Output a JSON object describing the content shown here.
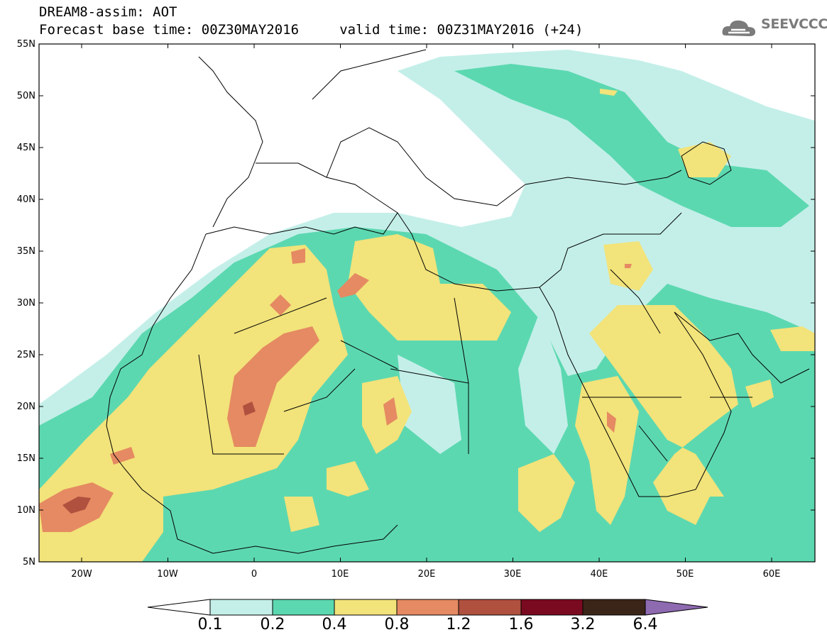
{
  "header": {
    "title_line1": "DREAM8-assim: AOT",
    "title_line2": "Forecast base time: 00Z30MAY2016     valid time: 00Z31MAY2016 (+24)",
    "logo_text": "SEEVCCC"
  },
  "map": {
    "variable": "AOT",
    "lat_labels": [
      "55N",
      "50N",
      "45N",
      "40N",
      "35N",
      "30N",
      "25N",
      "20N",
      "15N",
      "10N",
      "5N"
    ],
    "lon_labels": [
      "20W",
      "10W",
      "0",
      "10E",
      "20E",
      "30E",
      "40E",
      "50E",
      "60E"
    ]
  },
  "colorbar": {
    "levels": [
      "0.1",
      "0.2",
      "0.4",
      "0.8",
      "1.2",
      "1.6",
      "3.2",
      "6.4"
    ],
    "colors": [
      "#c4efe9",
      "#5cd8b0",
      "#f2e37a",
      "#e58a62",
      "#b0503f",
      "#7a0a20",
      "#3b2518",
      "#8e6ab0"
    ],
    "below_color": "#ffffff"
  },
  "colors": {
    "land_outline": "#000000",
    "ocean_background": "#ffffff"
  }
}
